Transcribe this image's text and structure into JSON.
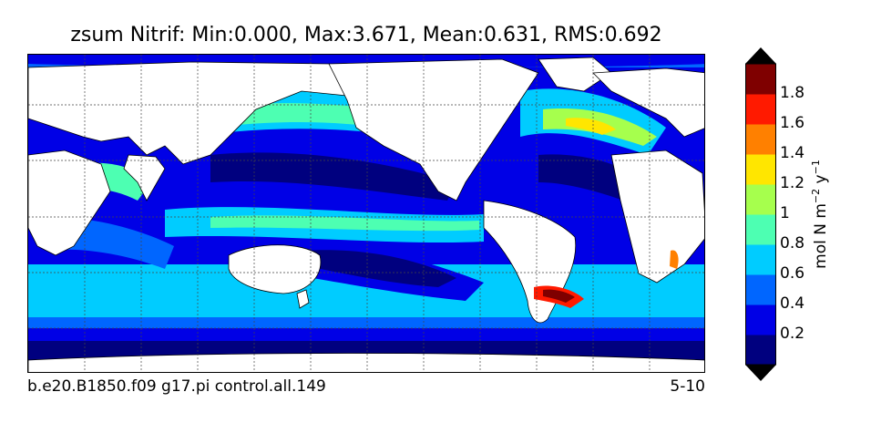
{
  "title": "zsum Nitrif: Min:0.000, Max:3.671, Mean:0.631, RMS:0.692",
  "footer": {
    "case_name": "b.e20.B1850.f09 g17.pi control.all.149",
    "years": "5-10"
  },
  "colorbar": {
    "label_base": "mol N m",
    "label_exp1": "−2",
    "label_mid": " y",
    "label_exp2": "−1",
    "ticks": [
      "0.2",
      "0.4",
      "0.6",
      "0.8",
      "1",
      "1.2",
      "1.4",
      "1.6",
      "1.8"
    ],
    "tick_values": [
      0.2,
      0.4,
      0.6,
      0.8,
      1.0,
      1.2,
      1.4,
      1.6,
      1.8
    ],
    "range": [
      0,
      2.0
    ],
    "colors": [
      "#00007f",
      "#0000e6",
      "#0066ff",
      "#00ccff",
      "#4dffb2",
      "#a6ff4d",
      "#ffe600",
      "#ff8000",
      "#ff1a00",
      "#7f0000"
    ]
  },
  "map": {
    "type": "global ocean contour field",
    "land_color": "#ffffff",
    "gridlines": "dotted"
  }
}
